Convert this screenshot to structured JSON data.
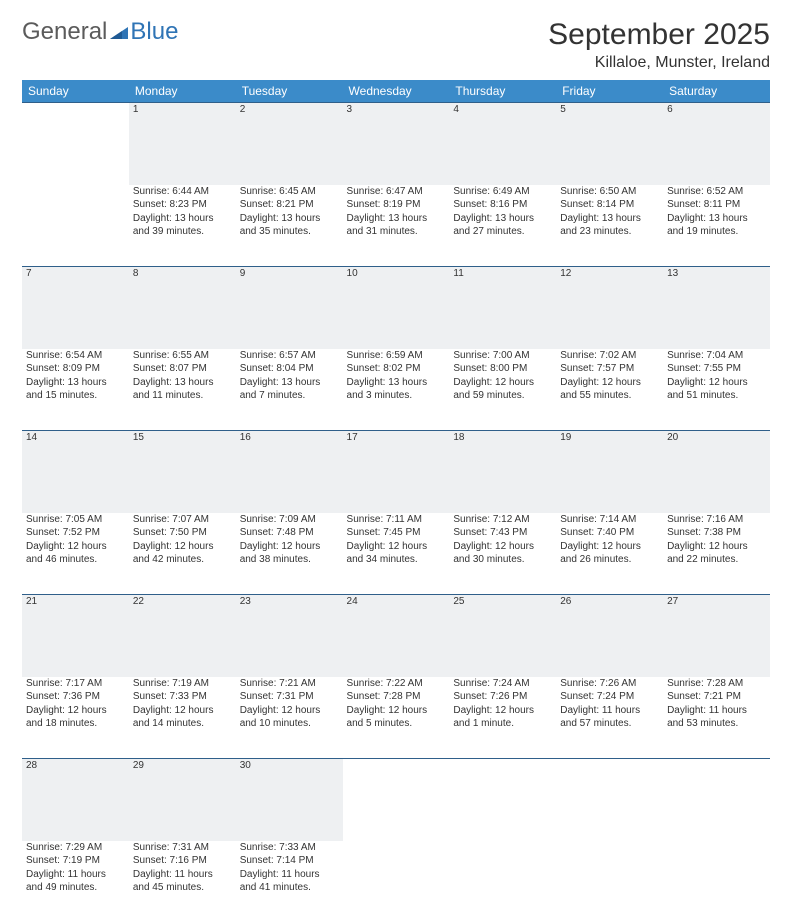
{
  "brand": {
    "part1": "General",
    "part2": "Blue"
  },
  "title": {
    "month": "September 2025",
    "location": "Killaloe, Munster, Ireland"
  },
  "colors": {
    "header_bg": "#3b8bc9",
    "daynum_bg": "#eef0f2",
    "daynum_border": "#2f5f8a",
    "text": "#333333",
    "brand_gray": "#5b5b5b",
    "brand_blue": "#2f74b5",
    "page_bg": "#ffffff"
  },
  "weekdays": [
    "Sunday",
    "Monday",
    "Tuesday",
    "Wednesday",
    "Thursday",
    "Friday",
    "Saturday"
  ],
  "weeks": [
    {
      "nums": [
        "",
        "1",
        "2",
        "3",
        "4",
        "5",
        "6"
      ],
      "cells": [
        null,
        {
          "sunrise": "Sunrise: 6:44 AM",
          "sunset": "Sunset: 8:23 PM",
          "daylight": "Daylight: 13 hours and 39 minutes."
        },
        {
          "sunrise": "Sunrise: 6:45 AM",
          "sunset": "Sunset: 8:21 PM",
          "daylight": "Daylight: 13 hours and 35 minutes."
        },
        {
          "sunrise": "Sunrise: 6:47 AM",
          "sunset": "Sunset: 8:19 PM",
          "daylight": "Daylight: 13 hours and 31 minutes."
        },
        {
          "sunrise": "Sunrise: 6:49 AM",
          "sunset": "Sunset: 8:16 PM",
          "daylight": "Daylight: 13 hours and 27 minutes."
        },
        {
          "sunrise": "Sunrise: 6:50 AM",
          "sunset": "Sunset: 8:14 PM",
          "daylight": "Daylight: 13 hours and 23 minutes."
        },
        {
          "sunrise": "Sunrise: 6:52 AM",
          "sunset": "Sunset: 8:11 PM",
          "daylight": "Daylight: 13 hours and 19 minutes."
        }
      ]
    },
    {
      "nums": [
        "7",
        "8",
        "9",
        "10",
        "11",
        "12",
        "13"
      ],
      "cells": [
        {
          "sunrise": "Sunrise: 6:54 AM",
          "sunset": "Sunset: 8:09 PM",
          "daylight": "Daylight: 13 hours and 15 minutes."
        },
        {
          "sunrise": "Sunrise: 6:55 AM",
          "sunset": "Sunset: 8:07 PM",
          "daylight": "Daylight: 13 hours and 11 minutes."
        },
        {
          "sunrise": "Sunrise: 6:57 AM",
          "sunset": "Sunset: 8:04 PM",
          "daylight": "Daylight: 13 hours and 7 minutes."
        },
        {
          "sunrise": "Sunrise: 6:59 AM",
          "sunset": "Sunset: 8:02 PM",
          "daylight": "Daylight: 13 hours and 3 minutes."
        },
        {
          "sunrise": "Sunrise: 7:00 AM",
          "sunset": "Sunset: 8:00 PM",
          "daylight": "Daylight: 12 hours and 59 minutes."
        },
        {
          "sunrise": "Sunrise: 7:02 AM",
          "sunset": "Sunset: 7:57 PM",
          "daylight": "Daylight: 12 hours and 55 minutes."
        },
        {
          "sunrise": "Sunrise: 7:04 AM",
          "sunset": "Sunset: 7:55 PM",
          "daylight": "Daylight: 12 hours and 51 minutes."
        }
      ]
    },
    {
      "nums": [
        "14",
        "15",
        "16",
        "17",
        "18",
        "19",
        "20"
      ],
      "cells": [
        {
          "sunrise": "Sunrise: 7:05 AM",
          "sunset": "Sunset: 7:52 PM",
          "daylight": "Daylight: 12 hours and 46 minutes."
        },
        {
          "sunrise": "Sunrise: 7:07 AM",
          "sunset": "Sunset: 7:50 PM",
          "daylight": "Daylight: 12 hours and 42 minutes."
        },
        {
          "sunrise": "Sunrise: 7:09 AM",
          "sunset": "Sunset: 7:48 PM",
          "daylight": "Daylight: 12 hours and 38 minutes."
        },
        {
          "sunrise": "Sunrise: 7:11 AM",
          "sunset": "Sunset: 7:45 PM",
          "daylight": "Daylight: 12 hours and 34 minutes."
        },
        {
          "sunrise": "Sunrise: 7:12 AM",
          "sunset": "Sunset: 7:43 PM",
          "daylight": "Daylight: 12 hours and 30 minutes."
        },
        {
          "sunrise": "Sunrise: 7:14 AM",
          "sunset": "Sunset: 7:40 PM",
          "daylight": "Daylight: 12 hours and 26 minutes."
        },
        {
          "sunrise": "Sunrise: 7:16 AM",
          "sunset": "Sunset: 7:38 PM",
          "daylight": "Daylight: 12 hours and 22 minutes."
        }
      ]
    },
    {
      "nums": [
        "21",
        "22",
        "23",
        "24",
        "25",
        "26",
        "27"
      ],
      "cells": [
        {
          "sunrise": "Sunrise: 7:17 AM",
          "sunset": "Sunset: 7:36 PM",
          "daylight": "Daylight: 12 hours and 18 minutes."
        },
        {
          "sunrise": "Sunrise: 7:19 AM",
          "sunset": "Sunset: 7:33 PM",
          "daylight": "Daylight: 12 hours and 14 minutes."
        },
        {
          "sunrise": "Sunrise: 7:21 AM",
          "sunset": "Sunset: 7:31 PM",
          "daylight": "Daylight: 12 hours and 10 minutes."
        },
        {
          "sunrise": "Sunrise: 7:22 AM",
          "sunset": "Sunset: 7:28 PM",
          "daylight": "Daylight: 12 hours and 5 minutes."
        },
        {
          "sunrise": "Sunrise: 7:24 AM",
          "sunset": "Sunset: 7:26 PM",
          "daylight": "Daylight: 12 hours and 1 minute."
        },
        {
          "sunrise": "Sunrise: 7:26 AM",
          "sunset": "Sunset: 7:24 PM",
          "daylight": "Daylight: 11 hours and 57 minutes."
        },
        {
          "sunrise": "Sunrise: 7:28 AM",
          "sunset": "Sunset: 7:21 PM",
          "daylight": "Daylight: 11 hours and 53 minutes."
        }
      ]
    },
    {
      "nums": [
        "28",
        "29",
        "30",
        "",
        "",
        "",
        ""
      ],
      "cells": [
        {
          "sunrise": "Sunrise: 7:29 AM",
          "sunset": "Sunset: 7:19 PM",
          "daylight": "Daylight: 11 hours and 49 minutes."
        },
        {
          "sunrise": "Sunrise: 7:31 AM",
          "sunset": "Sunset: 7:16 PM",
          "daylight": "Daylight: 11 hours and 45 minutes."
        },
        {
          "sunrise": "Sunrise: 7:33 AM",
          "sunset": "Sunset: 7:14 PM",
          "daylight": "Daylight: 11 hours and 41 minutes."
        },
        null,
        null,
        null,
        null
      ]
    }
  ]
}
